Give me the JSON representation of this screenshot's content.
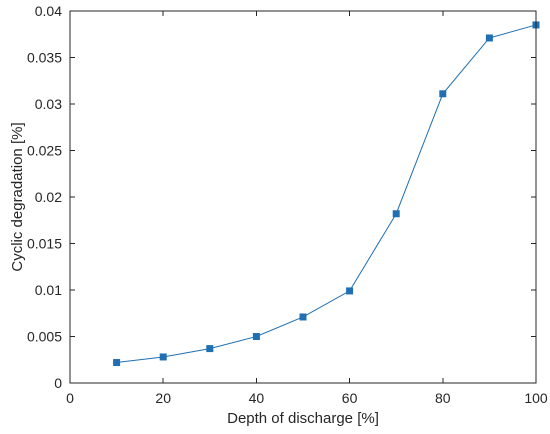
{
  "chart_data": {
    "type": "line",
    "title": "",
    "xlabel": "Depth of discharge [%]",
    "ylabel": "Cyclic degradation [%]",
    "xlim": [
      0,
      100
    ],
    "ylim": [
      0,
      0.04
    ],
    "xticks": [
      0,
      20,
      40,
      60,
      80,
      100
    ],
    "xtick_labels": [
      "0",
      "20",
      "40",
      "60",
      "80",
      "100"
    ],
    "yticks": [
      0,
      0.005,
      0.01,
      0.015,
      0.02,
      0.025,
      0.03,
      0.035,
      0.04
    ],
    "ytick_labels": [
      "0",
      "0.005",
      "0.01",
      "0.015",
      "0.02",
      "0.025",
      "0.03",
      "0.035",
      "0.04"
    ],
    "grid": false,
    "box": true,
    "series": [
      {
        "marker": "square",
        "color": "#1f6fb2",
        "x": [
          10,
          20,
          30,
          40,
          50,
          60,
          70,
          80,
          90,
          100
        ],
        "y": [
          0.0022,
          0.0028,
          0.0037,
          0.005,
          0.0071,
          0.0099,
          0.0182,
          0.0311,
          0.0371,
          0.0385
        ]
      }
    ]
  }
}
